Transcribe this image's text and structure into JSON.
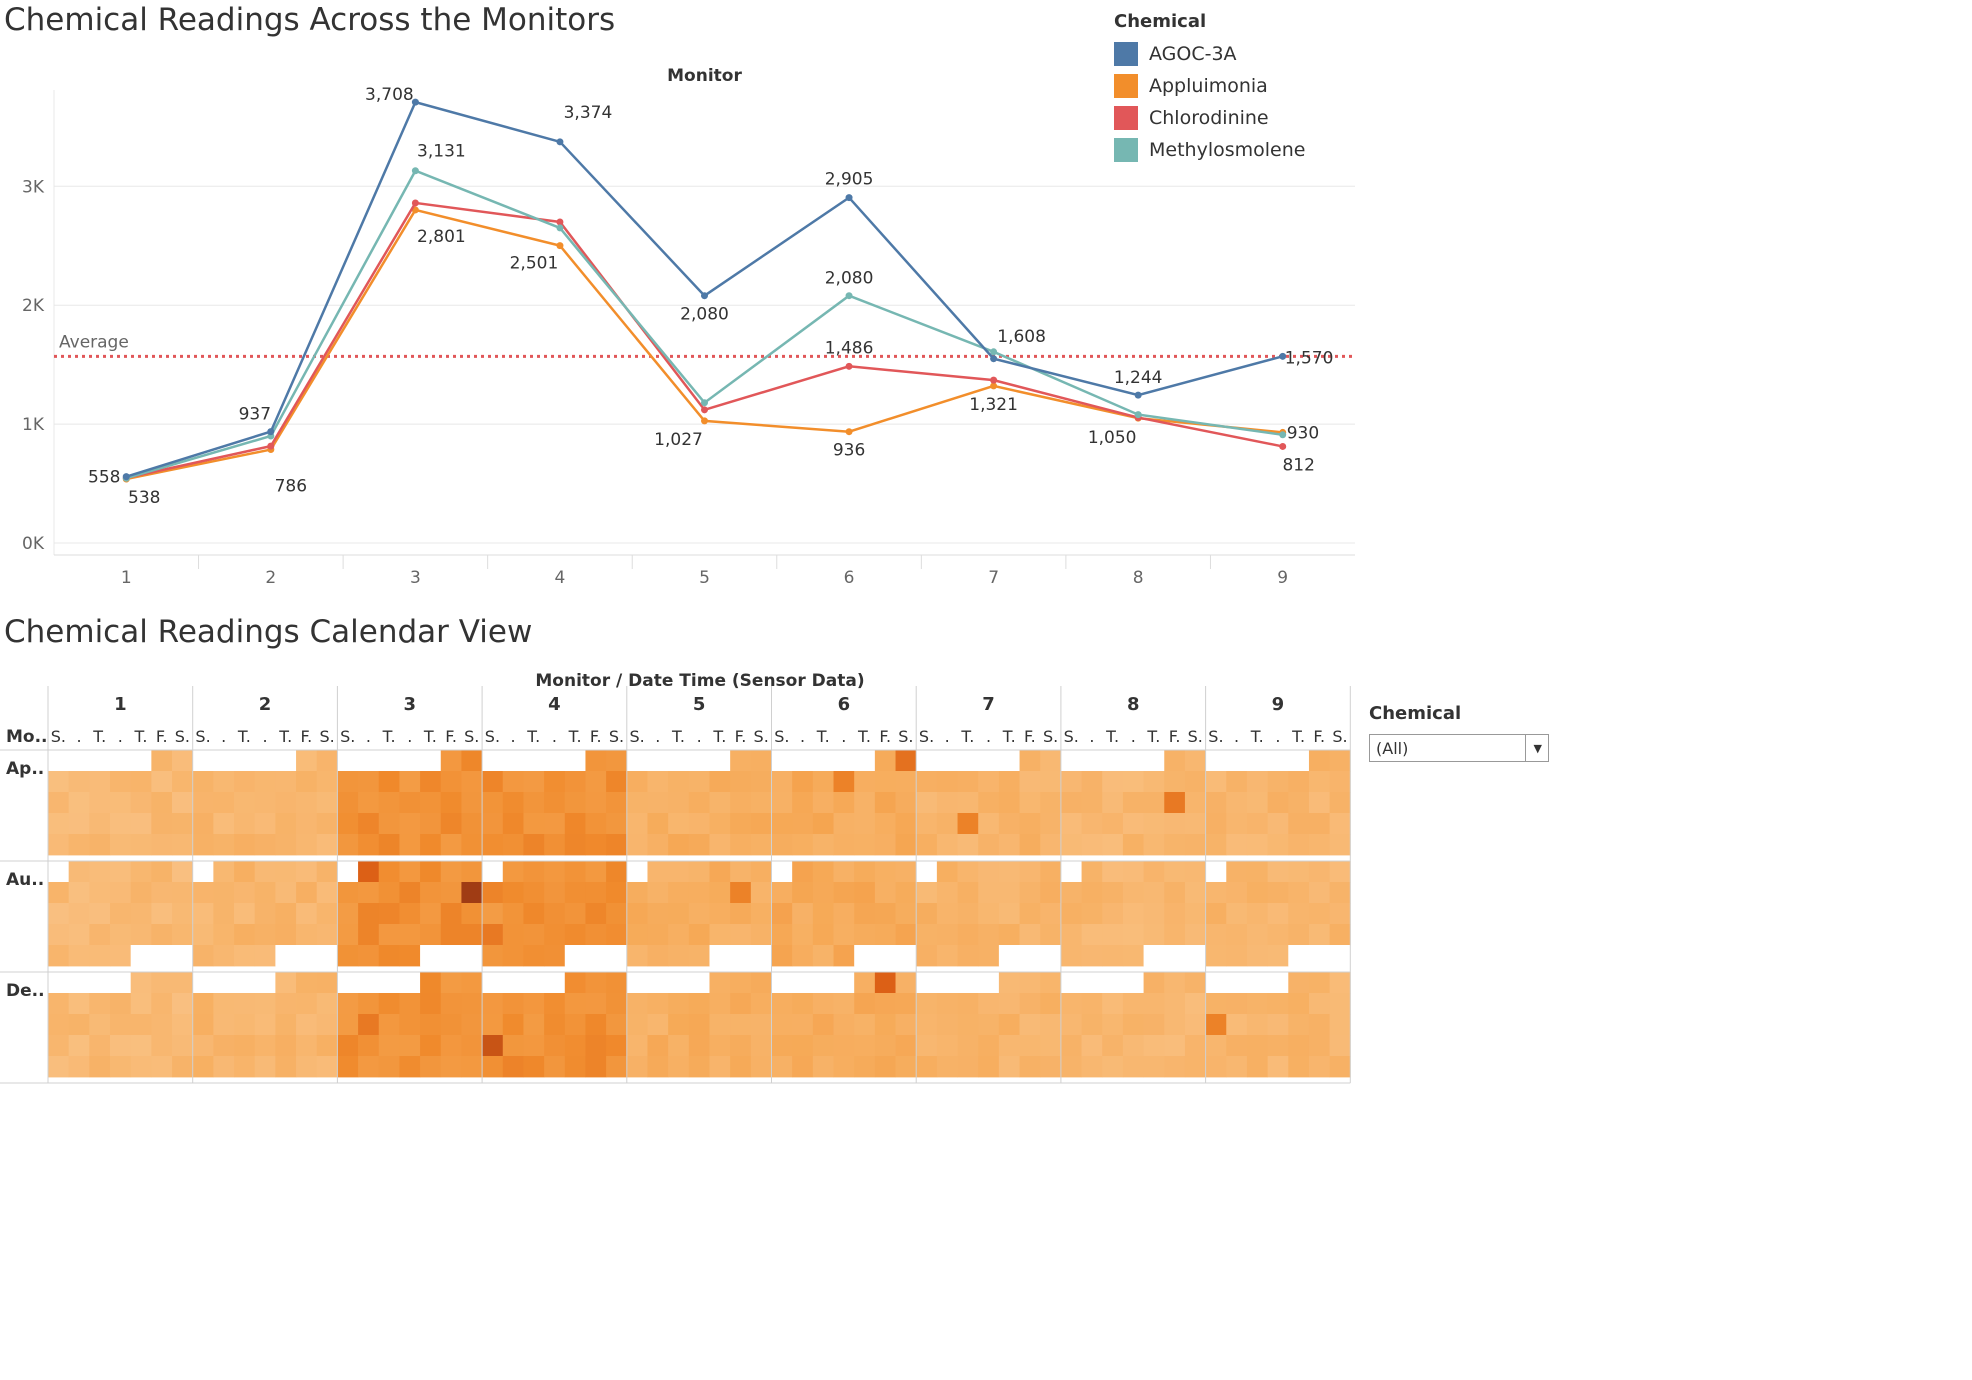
{
  "line_title": "Chemical Readings Across the Monitors",
  "calendar_title": "Chemical Readings Calendar View",
  "legend": {
    "title": "Chemical",
    "items": [
      {
        "label": "AGOC-3A",
        "color": "#4e79a7"
      },
      {
        "label": "Appluimonia",
        "color": "#f28e2b"
      },
      {
        "label": "Chlorodinine",
        "color": "#e15759"
      },
      {
        "label": "Methylosmolene",
        "color": "#76b7b2"
      }
    ]
  },
  "filter": {
    "title": "Chemical",
    "value": "(All)"
  },
  "chart_data": [
    {
      "type": "line",
      "title": "Chemical Readings Across the Monitors",
      "column_header": "Monitor",
      "x": [
        1,
        2,
        3,
        4,
        5,
        6,
        7,
        8,
        9
      ],
      "ylim": [
        0,
        3900
      ],
      "y_ticks": [
        0,
        1000,
        2000,
        3000
      ],
      "y_tick_labels": [
        "0K",
        "1K",
        "2K",
        "3K"
      ],
      "reference_line": {
        "label": "Average",
        "value": 1570,
        "color": "#e15759"
      },
      "series": [
        {
          "name": "AGOC-3A",
          "color": "#4e79a7",
          "values": [
            558,
            937,
            3708,
            3374,
            2080,
            2905,
            1550,
            1244,
            1570
          ]
        },
        {
          "name": "Appluimonia",
          "color": "#f28e2b",
          "values": [
            538,
            786,
            2801,
            2501,
            1027,
            936,
            1321,
            1050,
            930
          ]
        },
        {
          "name": "Chlorodinine",
          "color": "#e15759",
          "values": [
            548,
            815,
            2860,
            2700,
            1120,
            1486,
            1370,
            1055,
            812
          ]
        },
        {
          "name": "Methylosmolene",
          "color": "#76b7b2",
          "values": [
            545,
            900,
            3131,
            2650,
            1180,
            2080,
            1608,
            1080,
            910
          ]
        }
      ],
      "data_labels": [
        {
          "x": 1,
          "text": "558"
        },
        {
          "x": 1,
          "text": "538"
        },
        {
          "x": 2,
          "text": "937"
        },
        {
          "x": 2,
          "text": "786"
        },
        {
          "x": 3,
          "text": "3,708"
        },
        {
          "x": 3,
          "text": "3,131"
        },
        {
          "x": 3,
          "text": "2,801"
        },
        {
          "x": 4,
          "text": "3,374"
        },
        {
          "x": 4,
          "text": "2,501"
        },
        {
          "x": 5,
          "text": "2,080"
        },
        {
          "x": 5,
          "text": "1,027"
        },
        {
          "x": 6,
          "text": "2,905"
        },
        {
          "x": 6,
          "text": "2,080"
        },
        {
          "x": 6,
          "text": "1,486"
        },
        {
          "x": 6,
          "text": "936"
        },
        {
          "x": 7,
          "text": "1,608"
        },
        {
          "x": 7,
          "text": "1,321"
        },
        {
          "x": 8,
          "text": "1,244"
        },
        {
          "x": 8,
          "text": "1,050"
        },
        {
          "x": 9,
          "text": "1,570"
        },
        {
          "x": 9,
          "text": "930"
        },
        {
          "x": 9,
          "text": "812"
        }
      ]
    },
    {
      "type": "heatmap",
      "title": "Chemical Readings Calendar View",
      "header": "Monitor  /  Date Time (Sensor Data)",
      "row_header": "Mo..",
      "monitors": [
        "1",
        "2",
        "3",
        "4",
        "5",
        "6",
        "7",
        "8",
        "9"
      ],
      "weekday_labels": [
        "S.",
        ".",
        "T.",
        ".",
        "T.",
        "F.",
        "S."
      ],
      "months": [
        "Ap..",
        "Au..",
        "De.."
      ],
      "weeks_per_month": 5,
      "blank_cells": {
        "month_0": {
          "first_week_blank_days": 5,
          "last_week_blank_from": 7
        },
        "month_1": {
          "first_week_blank_days": 1,
          "last_week_blank_from": 4
        },
        "month_2": {
          "first_week_blank_days": 4,
          "last_week_blank_from": 7
        }
      },
      "monitor_intensity": [
        0.15,
        0.2,
        0.55,
        0.55,
        0.28,
        0.32,
        0.22,
        0.18,
        0.2
      ],
      "hotspots": [
        {
          "monitor": 3,
          "month": 1,
          "week": 0,
          "day": 1,
          "level": 0.85
        },
        {
          "monitor": 3,
          "month": 1,
          "week": 1,
          "day": 6,
          "level": 1.0
        },
        {
          "monitor": 6,
          "month": 0,
          "week": 0,
          "day": 6,
          "level": 0.75
        },
        {
          "monitor": 6,
          "month": 0,
          "week": 1,
          "day": 3,
          "level": 0.65
        },
        {
          "monitor": 6,
          "month": 2,
          "week": 0,
          "day": 5,
          "level": 0.85
        },
        {
          "monitor": 4,
          "month": 2,
          "week": 3,
          "day": 0,
          "level": 0.9
        },
        {
          "monitor": 3,
          "month": 2,
          "week": 2,
          "day": 1,
          "level": 0.7
        },
        {
          "monitor": 8,
          "month": 0,
          "week": 2,
          "day": 5,
          "level": 0.7
        },
        {
          "monitor": 9,
          "month": 2,
          "week": 2,
          "day": 0,
          "level": 0.65
        },
        {
          "monitor": 5,
          "month": 1,
          "week": 1,
          "day": 5,
          "level": 0.65
        },
        {
          "monitor": 7,
          "month": 0,
          "week": 3,
          "day": 2,
          "level": 0.65
        },
        {
          "monitor": 4,
          "month": 1,
          "week": 3,
          "day": 0,
          "level": 0.7
        }
      ]
    }
  ]
}
